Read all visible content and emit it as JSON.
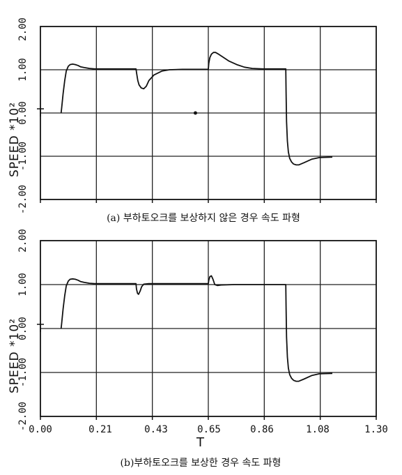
{
  "chart_data": [
    {
      "type": "line",
      "caption": "(a) 부하토오크를 보상하지 않은 경우 속도 파형",
      "ylabel": "SPEED *10²",
      "xlim": [
        0.0,
        1.3
      ],
      "ylim": [
        -2.0,
        2.0
      ],
      "y_ticks": [
        "2.00",
        "1.00",
        "0.00",
        "-1.00",
        "-2.00"
      ],
      "grid": true,
      "series": [
        {
          "x": [
            0.08,
            0.082,
            0.088,
            0.094,
            0.1,
            0.108,
            0.115,
            0.125,
            0.135,
            0.145,
            0.155,
            0.17,
            0.19,
            0.21,
            0.28,
            0.35,
            0.37,
            0.373,
            0.377,
            0.382,
            0.39,
            0.4,
            0.41,
            0.42,
            0.44,
            0.47,
            0.5,
            0.55,
            0.6,
            0.65,
            0.652,
            0.656,
            0.662,
            0.67,
            0.678,
            0.69,
            0.71,
            0.73,
            0.76,
            0.79,
            0.82,
            0.86,
            0.9,
            0.95,
            0.951,
            0.953,
            0.956,
            0.96,
            0.965,
            0.972,
            0.98,
            0.99,
            1.0,
            1.02,
            1.05,
            1.08,
            1.13
          ],
          "y": [
            0.0,
            0.1,
            0.45,
            0.75,
            0.97,
            1.08,
            1.12,
            1.13,
            1.12,
            1.1,
            1.07,
            1.05,
            1.03,
            1.02,
            1.02,
            1.02,
            1.02,
            0.9,
            0.75,
            0.65,
            0.58,
            0.56,
            0.62,
            0.75,
            0.88,
            0.97,
            1.0,
            1.01,
            1.01,
            1.01,
            1.15,
            1.28,
            1.36,
            1.4,
            1.4,
            1.36,
            1.28,
            1.2,
            1.12,
            1.06,
            1.03,
            1.02,
            1.02,
            1.02,
            0.5,
            -0.2,
            -0.65,
            -0.9,
            -1.05,
            -1.13,
            -1.18,
            -1.2,
            -1.2,
            -1.15,
            -1.07,
            -1.03,
            -1.02
          ]
        }
      ]
    },
    {
      "type": "line",
      "caption": "(b)부하토오크를 보상한 경우 속도 파형",
      "ylabel": "SPEED *10²",
      "xlabel": "T",
      "xlim": [
        0.0,
        1.3
      ],
      "ylim": [
        -2.0,
        2.0
      ],
      "x_ticks": [
        "0.00",
        "0.21",
        "0.43",
        "0.65",
        "0.86",
        "1.08",
        "1.30"
      ],
      "y_ticks": [
        "2.00",
        "1.00",
        "0.00",
        "-1.00",
        "-2.00"
      ],
      "grid": true,
      "series": [
        {
          "x": [
            0.08,
            0.082,
            0.088,
            0.094,
            0.1,
            0.108,
            0.115,
            0.125,
            0.135,
            0.145,
            0.155,
            0.17,
            0.19,
            0.21,
            0.28,
            0.35,
            0.37,
            0.372,
            0.376,
            0.38,
            0.386,
            0.392,
            0.4,
            0.42,
            0.5,
            0.6,
            0.65,
            0.652,
            0.656,
            0.662,
            0.668,
            0.675,
            0.685,
            0.7,
            0.75,
            0.8,
            0.85,
            0.9,
            0.95,
            0.951,
            0.953,
            0.956,
            0.96,
            0.965,
            0.972,
            0.98,
            0.99,
            1.0,
            1.02,
            1.05,
            1.08,
            1.13
          ],
          "y": [
            0.0,
            0.1,
            0.45,
            0.75,
            0.97,
            1.08,
            1.12,
            1.13,
            1.12,
            1.1,
            1.07,
            1.05,
            1.03,
            1.02,
            1.02,
            1.02,
            1.02,
            0.9,
            0.8,
            0.78,
            0.85,
            0.95,
            1.01,
            1.02,
            1.02,
            1.02,
            1.02,
            1.1,
            1.18,
            1.2,
            1.12,
            1.0,
            0.98,
            0.99,
            1.0,
            1.0,
            1.0,
            1.0,
            1.0,
            0.5,
            -0.2,
            -0.65,
            -0.9,
            -1.05,
            -1.13,
            -1.18,
            -1.2,
            -1.2,
            -1.15,
            -1.07,
            -1.03,
            -1.02
          ]
        }
      ]
    }
  ]
}
